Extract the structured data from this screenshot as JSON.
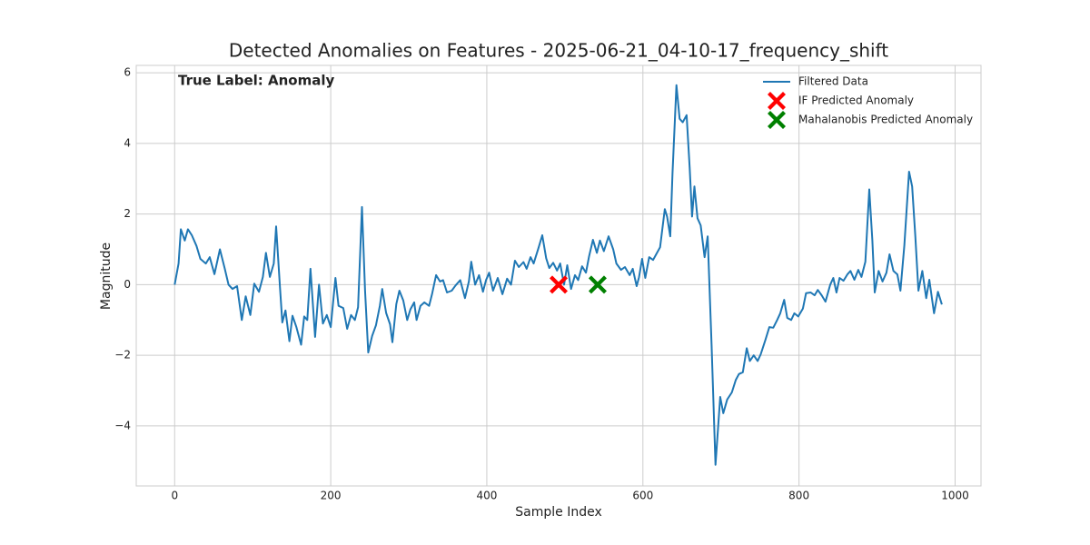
{
  "chart_data": {
    "type": "line",
    "title": "Detected Anomalies on Features - 2025-06-21_04-10-17_frequency_shift",
    "annotation": "True Label: Anomaly",
    "x_label": "Sample Index",
    "y_label": "Magnitude",
    "xlim": [
      -49.2,
      1033.2
    ],
    "ylim": [
      -5.7,
      6.21
    ],
    "xticks": [
      0,
      200,
      400,
      600,
      800,
      1000
    ],
    "yticks": [
      {
        "value": -4,
        "label": "−4"
      },
      {
        "value": -2,
        "label": "−2"
      },
      0,
      2,
      4,
      6
    ],
    "grid": true,
    "legend": "upper right",
    "series": [
      {
        "name": "Filtered Data",
        "kind": "line",
        "color": "#1f77b4",
        "x": [
          0,
          5,
          8,
          13,
          17,
          22,
          28,
          33,
          40,
          45,
          51,
          58,
          64,
          69,
          74,
          80,
          86,
          91,
          97,
          102,
          108,
          113,
          117,
          122,
          127,
          130,
          135,
          138,
          142,
          147,
          151,
          156,
          162,
          166,
          170,
          174,
          180,
          185,
          190,
          195,
          200,
          206,
          210,
          216,
          221,
          226,
          231,
          235,
          240,
          244,
          248,
          253,
          258,
          263,
          266,
          271,
          276,
          279,
          284,
          288,
          293,
          298,
          302,
          307,
          310,
          315,
          320,
          326,
          330,
          335,
          340,
          344,
          349,
          355,
          360,
          366,
          372,
          377,
          380,
          385,
          390,
          395,
          399,
          403,
          408,
          414,
          420,
          426,
          431,
          436,
          441,
          447,
          451,
          456,
          460,
          466,
          471,
          476,
          480,
          485,
          490,
          494,
          499,
          503,
          508,
          513,
          517,
          522,
          527,
          531,
          536,
          541,
          545,
          550,
          556,
          562,
          566,
          572,
          577,
          583,
          587,
          592,
          595,
          599,
          603,
          608,
          613,
          617,
          622,
          628,
          631,
          635,
          638,
          643,
          647,
          651,
          656,
          660,
          663,
          666,
          670,
          674,
          679,
          683,
          688,
          693,
          699,
          703,
          708,
          714,
          719,
          723,
          728,
          733,
          737,
          742,
          747,
          751,
          757,
          762,
          767,
          772,
          776,
          781,
          785,
          790,
          794,
          799,
          805,
          809,
          815,
          820,
          824,
          829,
          834,
          840,
          844,
          848,
          852,
          857,
          862,
          866,
          871,
          876,
          880,
          885,
          890,
          894,
          897,
          902,
          907,
          912,
          916,
          921,
          926,
          930,
          935,
          941,
          945,
          949,
          953,
          958,
          963,
          967,
          973,
          978,
          983
        ],
        "values": [
          0,
          0.6,
          1.57,
          1.25,
          1.57,
          1.4,
          1.1,
          0.73,
          0.6,
          0.78,
          0.3,
          1.0,
          0.47,
          0,
          -0.12,
          -0.04,
          -1.0,
          -0.33,
          -0.86,
          0.03,
          -0.2,
          0.22,
          0.9,
          0.22,
          0.6,
          1.65,
          -0.1,
          -1.07,
          -0.73,
          -1.6,
          -0.88,
          -1.2,
          -1.7,
          -0.9,
          -1.0,
          0.45,
          -1.48,
          0,
          -1.1,
          -0.86,
          -1.2,
          0.19,
          -0.6,
          -0.66,
          -1.25,
          -0.86,
          -1.0,
          -0.64,
          2.2,
          -0.17,
          -1.92,
          -1.45,
          -1.15,
          -0.6,
          -0.12,
          -0.8,
          -1.12,
          -1.63,
          -0.55,
          -0.17,
          -0.45,
          -1.0,
          -0.7,
          -0.5,
          -1.0,
          -0.6,
          -0.5,
          -0.6,
          -0.25,
          0.27,
          0.09,
          0.13,
          -0.22,
          -0.17,
          -0.02,
          0.13,
          -0.38,
          0.09,
          0.65,
          0,
          0.27,
          -0.2,
          0.13,
          0.34,
          -0.17,
          0.19,
          -0.27,
          0.17,
          0,
          0.68,
          0.5,
          0.64,
          0.45,
          0.78,
          0.6,
          1.03,
          1.4,
          0.75,
          0.47,
          0.62,
          0.4,
          0.6,
          0,
          0.55,
          -0.12,
          0.27,
          0.13,
          0.52,
          0.34,
          0.8,
          1.27,
          0.9,
          1.25,
          0.95,
          1.37,
          1.0,
          0.6,
          0.42,
          0.5,
          0.27,
          0.45,
          -0.04,
          0.21,
          0.73,
          0.19,
          0.78,
          0.7,
          0.86,
          1.06,
          2.14,
          1.93,
          1.37,
          3.17,
          5.65,
          4.7,
          4.6,
          4.8,
          3.3,
          1.93,
          2.78,
          1.88,
          1.68,
          0.78,
          1.37,
          -1.71,
          -5.1,
          -3.18,
          -3.64,
          -3.25,
          -3.05,
          -2.7,
          -2.53,
          -2.48,
          -1.8,
          -2.16,
          -2.0,
          -2.16,
          -1.97,
          -1.56,
          -1.2,
          -1.22,
          -1.0,
          -0.81,
          -0.43,
          -0.94,
          -1.0,
          -0.81,
          -0.9,
          -0.68,
          -0.24,
          -0.22,
          -0.3,
          -0.15,
          -0.3,
          -0.48,
          0,
          0.19,
          -0.22,
          0.19,
          0.11,
          0.29,
          0.39,
          0.14,
          0.42,
          0.22,
          0.65,
          2.7,
          1.25,
          -0.22,
          0.39,
          0.09,
          0.34,
          0.86,
          0.39,
          0.29,
          -0.17,
          1.11,
          3.2,
          2.78,
          1.37,
          -0.17,
          0.39,
          -0.38,
          0.14,
          -0.81,
          -0.2,
          -0.56
        ]
      },
      {
        "name": "IF Predicted Anomaly",
        "kind": "scatter",
        "color": "#ff0000",
        "x": [
          492
        ],
        "values": [
          0
        ]
      },
      {
        "name": "Mahalanobis Predicted Anomaly",
        "kind": "scatter",
        "color": "#008000",
        "x": [
          542
        ],
        "values": [
          0
        ]
      }
    ]
  }
}
